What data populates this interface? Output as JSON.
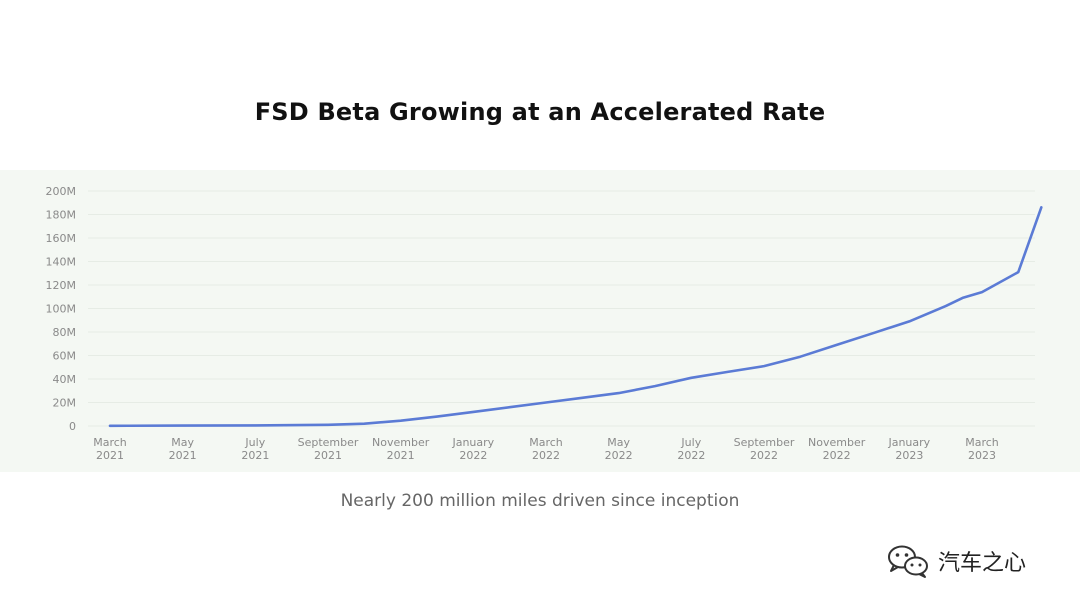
{
  "slide": {
    "title": "FSD Beta Growing at an Accelerated Rate",
    "caption": "Nearly 200 million miles driven since inception",
    "watermark_text": "汽车之心",
    "watermark_icon": "wechat-icon"
  },
  "colors": {
    "line": "#5b7bd5",
    "panel_background": "#f4f8f3",
    "tick_text": "#8a8a8a",
    "title_text": "#111111",
    "caption_text": "#666666"
  },
  "chart_data": {
    "type": "line",
    "title": "FSD Beta Growing at an Accelerated Rate",
    "xlabel": "",
    "ylabel": "",
    "grid": true,
    "legend": "none",
    "ylim": [
      0,
      200
    ],
    "y_unit": "M",
    "y_ticks": [
      "0",
      "20M",
      "40M",
      "60M",
      "80M",
      "100M",
      "120M",
      "140M",
      "160M",
      "180M",
      "200M"
    ],
    "x_ticks": [
      {
        "month": "March",
        "year": "2021",
        "x": "2021-03"
      },
      {
        "month": "May",
        "year": "2021",
        "x": "2021-05"
      },
      {
        "month": "July",
        "year": "2021",
        "x": "2021-07"
      },
      {
        "month": "September",
        "year": "2021",
        "x": "2021-09"
      },
      {
        "month": "November",
        "year": "2021",
        "x": "2021-11"
      },
      {
        "month": "January",
        "year": "2022",
        "x": "2022-01"
      },
      {
        "month": "March",
        "year": "2022",
        "x": "2022-03"
      },
      {
        "month": "May",
        "year": "2022",
        "x": "2022-05"
      },
      {
        "month": "July",
        "year": "2022",
        "x": "2022-07"
      },
      {
        "month": "September",
        "year": "2022",
        "x": "2022-09"
      },
      {
        "month": "November",
        "year": "2022",
        "x": "2022-11"
      },
      {
        "month": "January",
        "year": "2023",
        "x": "2023-01"
      },
      {
        "month": "March",
        "year": "2023",
        "x": "2023-03"
      }
    ],
    "series": [
      {
        "points": [
          {
            "x": "2021-03",
            "y": 0.2
          },
          {
            "x": "2021-05",
            "y": 0.3
          },
          {
            "x": "2021-07",
            "y": 0.5
          },
          {
            "x": "2021-09",
            "y": 1.0
          },
          {
            "x": "2021-10",
            "y": 2.0
          },
          {
            "x": "2021-11",
            "y": 4.5
          },
          {
            "x": "2021-12",
            "y": 8.0
          },
          {
            "x": "2022-01",
            "y": 12.0
          },
          {
            "x": "2022-02",
            "y": 16.0
          },
          {
            "x": "2022-03",
            "y": 20.0
          },
          {
            "x": "2022-04",
            "y": 24.0
          },
          {
            "x": "2022-05",
            "y": 28.0
          },
          {
            "x": "2022-06",
            "y": 34.0
          },
          {
            "x": "2022-07",
            "y": 41.0
          },
          {
            "x": "2022-08",
            "y": 46.0
          },
          {
            "x": "2022-09",
            "y": 51.0
          },
          {
            "x": "2022-10",
            "y": 59.0
          },
          {
            "x": "2022-11",
            "y": 69.0
          },
          {
            "x": "2022-12",
            "y": 79.0
          },
          {
            "x": "2023-01",
            "y": 89.0
          },
          {
            "x": "2023-02",
            "y": 102.0
          },
          {
            "x": "2023-02-15",
            "y": 109.0
          },
          {
            "x": "2023-03",
            "y": 114.0
          },
          {
            "x": "2023-04",
            "y": 131.0
          },
          {
            "x": "2023-04-20",
            "y": 186.0
          }
        ]
      }
    ]
  }
}
